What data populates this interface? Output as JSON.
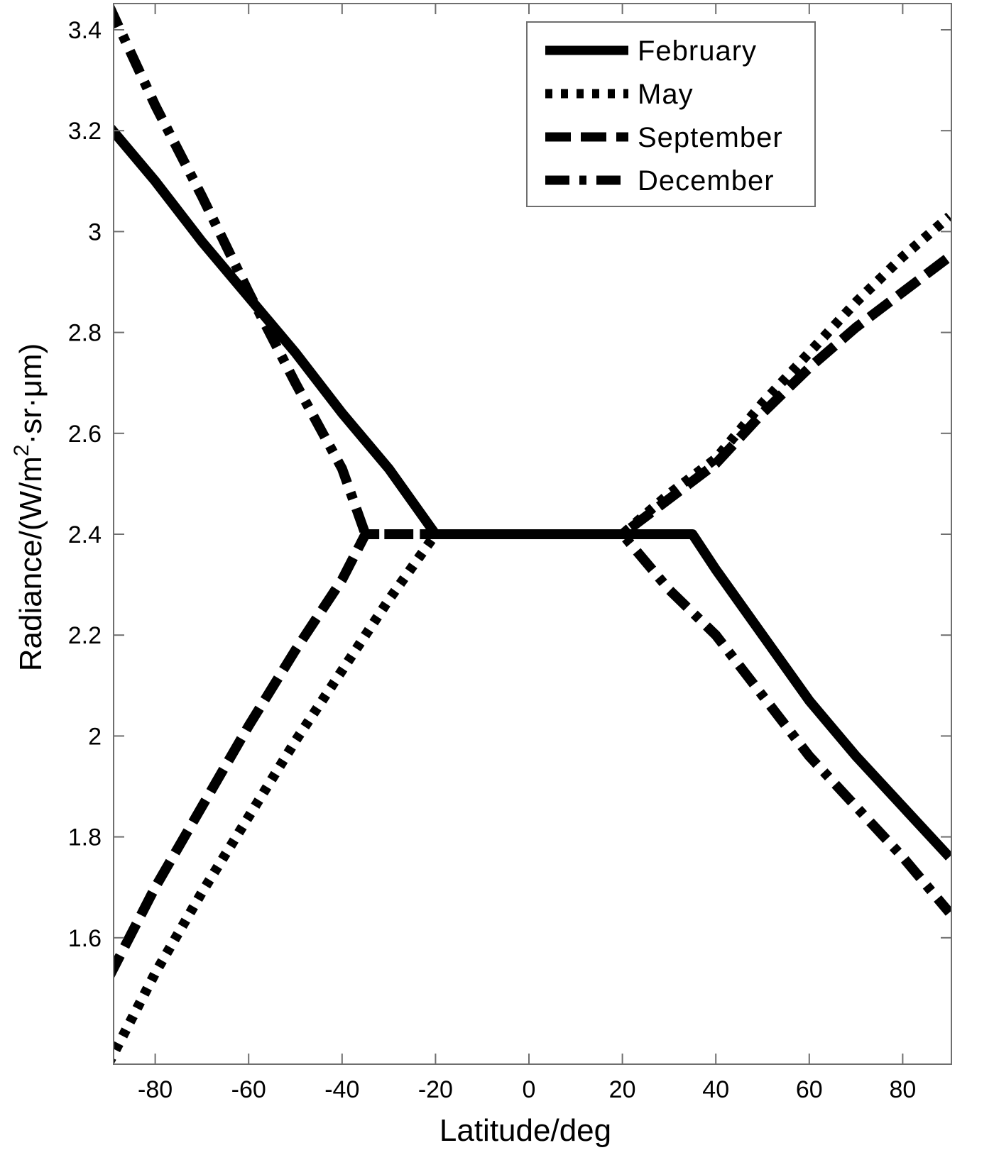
{
  "chart_data": {
    "type": "line",
    "title": "",
    "xlabel": "Latitude/deg",
    "ylabel": "Radiance/(W/m²·sr·μm)",
    "xlim": [
      -90,
      90
    ],
    "ylim": [
      1.35,
      3.45
    ],
    "grid": false,
    "legend_position": "upper right",
    "x_ticks": [
      -80,
      -60,
      -40,
      -20,
      0,
      20,
      40,
      60,
      80
    ],
    "x_tick_labels": [
      "-80",
      "-60",
      "-40",
      "-20",
      "0",
      "20",
      "40",
      "60",
      "80"
    ],
    "y_ticks": [
      1.6,
      1.8,
      2.0,
      2.2,
      2.4,
      2.6,
      2.8,
      3.0,
      3.2,
      3.4
    ],
    "y_tick_labels": [
      "1.6",
      "1.8",
      "2",
      "2.2",
      "2.4",
      "2.6",
      "2.8",
      "3",
      "3.2",
      "3.4"
    ],
    "series": [
      {
        "name": "February",
        "style": "solid",
        "x": [
          -90,
          -80,
          -70,
          -60,
          -50,
          -40,
          -30,
          -20,
          0,
          20,
          35,
          40,
          50,
          60,
          70,
          80,
          90
        ],
        "values": [
          3.21,
          3.1,
          2.98,
          2.87,
          2.76,
          2.64,
          2.53,
          2.4,
          2.4,
          2.4,
          2.4,
          2.33,
          2.2,
          2.07,
          1.96,
          1.86,
          1.76
        ]
      },
      {
        "name": "May",
        "style": "dotted",
        "x": [
          -90,
          -80,
          -70,
          -60,
          -50,
          -40,
          -30,
          -20,
          0,
          20,
          30,
          40,
          50,
          60,
          70,
          80,
          90
        ],
        "values": [
          1.35,
          1.53,
          1.69,
          1.84,
          1.99,
          2.13,
          2.27,
          2.4,
          2.4,
          2.4,
          2.48,
          2.55,
          2.66,
          2.76,
          2.86,
          2.95,
          3.03
        ]
      },
      {
        "name": "September",
        "style": "dashed",
        "x": [
          -90,
          -80,
          -70,
          -60,
          -50,
          -40,
          -35,
          0,
          20,
          30,
          40,
          50,
          60,
          70,
          80,
          90
        ],
        "values": [
          1.52,
          1.7,
          1.86,
          2.02,
          2.17,
          2.31,
          2.4,
          2.4,
          2.4,
          2.47,
          2.54,
          2.64,
          2.73,
          2.81,
          2.88,
          2.95
        ]
      },
      {
        "name": "December",
        "style": "dash-dot",
        "x": [
          -90,
          -80,
          -70,
          -60,
          -50,
          -40,
          -35,
          0,
          20,
          30,
          40,
          50,
          60,
          70,
          80,
          90
        ],
        "values": [
          3.45,
          3.25,
          3.07,
          2.88,
          2.7,
          2.53,
          2.4,
          2.4,
          2.4,
          2.29,
          2.2,
          2.08,
          1.96,
          1.86,
          1.76,
          1.65
        ]
      }
    ]
  },
  "legend": {
    "items": [
      {
        "label": "February",
        "style": "solid"
      },
      {
        "label": "May",
        "style": "dotted"
      },
      {
        "label": "September",
        "style": "dashed"
      },
      {
        "label": "December",
        "style": "dash-dot"
      }
    ]
  },
  "axes": {
    "xlabel": "Latitude/deg",
    "ylabel_main": "Radiance/(W/m",
    "ylabel_sup": "2",
    "ylabel_tail": "·sr·μm)"
  },
  "colors": {
    "line": "#000000",
    "axis": "#6e6e6e",
    "background": "#ffffff"
  }
}
